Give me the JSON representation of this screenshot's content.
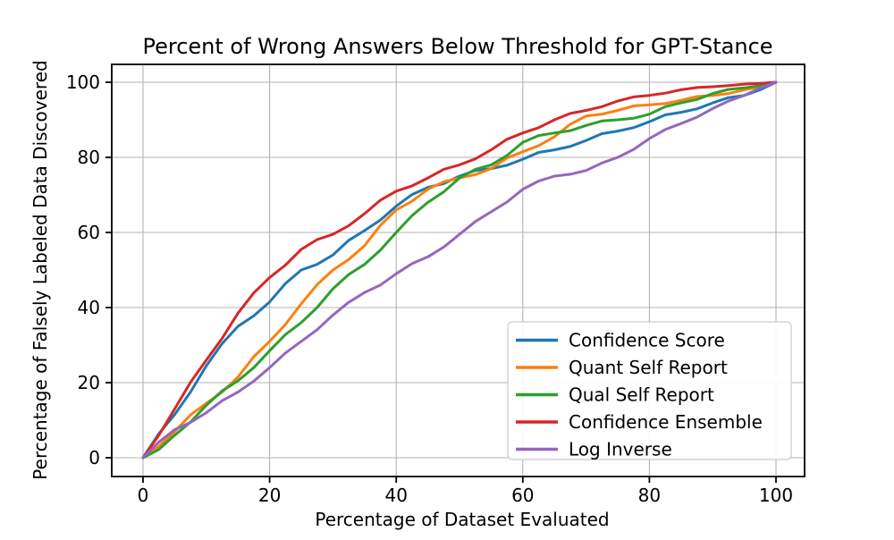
{
  "chart_data": {
    "type": "line",
    "title": "Percent of Wrong Answers Below Threshold for GPT-Stance",
    "xlabel": "Percentage of Dataset Evaluated",
    "ylabel": "Percentage of Falsely Labeled Data Discovered",
    "xlim": [
      0,
      100
    ],
    "ylim": [
      0,
      100
    ],
    "x_ticks": [
      0,
      20,
      40,
      60,
      80,
      100
    ],
    "y_ticks": [
      0,
      20,
      40,
      60,
      80,
      100
    ],
    "grid": true,
    "legend_position": "lower right",
    "grid_color": "#b3b3b3",
    "x_start": 0,
    "x_step": 2.5,
    "series": [
      {
        "name": "Confidence Score",
        "color": "#1f77b4",
        "values": [
          0,
          6.4,
          11.5,
          17.5,
          24.5,
          30.4,
          35,
          37.8,
          41.5,
          46.4,
          50,
          51.5,
          54,
          57.9,
          60.5,
          63.3,
          67,
          70.1,
          72,
          73,
          75,
          76.5,
          77,
          77.9,
          79.5,
          81.3,
          82,
          82.9,
          84.5,
          86.3,
          87,
          87.9,
          89.5,
          91.3,
          92,
          92.9,
          94.5,
          95.9,
          96.5,
          98,
          100
        ]
      },
      {
        "name": "Quant Self Report",
        "color": "#ff7f0e",
        "values": [
          0,
          3,
          7,
          11.4,
          14.5,
          17.5,
          21.5,
          26.9,
          31,
          35.5,
          41,
          46.1,
          50,
          52.8,
          56.5,
          61.9,
          66,
          68.3,
          71.5,
          73.5,
          74.5,
          75.4,
          77,
          79.8,
          81.5,
          83.1,
          85.5,
          88.8,
          91,
          91.5,
          92.5,
          93.7,
          94,
          94.3,
          95.2,
          96.2,
          96.5,
          97,
          98,
          98.8,
          100
        ]
      },
      {
        "name": "Qual Self Report",
        "color": "#2ca02c",
        "values": [
          0,
          2.2,
          6,
          9.5,
          14,
          17.8,
          20.5,
          24,
          28.5,
          32.8,
          36,
          40,
          45,
          48.8,
          51.5,
          55.3,
          60,
          64.5,
          68,
          70.8,
          74.5,
          76.8,
          78,
          80.5,
          84,
          85.8,
          86.5,
          87.1,
          88.5,
          89.7,
          90,
          90.4,
          91.5,
          93.5,
          94.5,
          95.4,
          97,
          98.1,
          98.5,
          99.1,
          100
        ]
      },
      {
        "name": "Confidence Ensemble",
        "color": "#d62728",
        "values": [
          0,
          6,
          13,
          20.1,
          26,
          31.8,
          38.5,
          43.9,
          48,
          51.3,
          55.5,
          58.1,
          59.5,
          61.8,
          65,
          68.6,
          71,
          72.4,
          74.5,
          76.8,
          78,
          79.6,
          82,
          84.8,
          86.5,
          87.9,
          90,
          91.7,
          92.5,
          93.5,
          95,
          96.1,
          96.5,
          97.1,
          98,
          98.6,
          98.8,
          99.1,
          99.5,
          99.7,
          100
        ]
      },
      {
        "name": "Log Inverse",
        "color": "#9467bd",
        "values": [
          0,
          4.2,
          7.5,
          9.4,
          12,
          15.2,
          17.5,
          20.4,
          24,
          27.9,
          31,
          34.1,
          38,
          41.4,
          44,
          46,
          49,
          51.7,
          53.5,
          56.1,
          59.5,
          62.9,
          65.5,
          68.1,
          71.5,
          73.7,
          75,
          75.5,
          76.5,
          78.5,
          80,
          82.1,
          85,
          87.4,
          89,
          90.7,
          93,
          95,
          96.5,
          98.5,
          100
        ]
      }
    ]
  }
}
